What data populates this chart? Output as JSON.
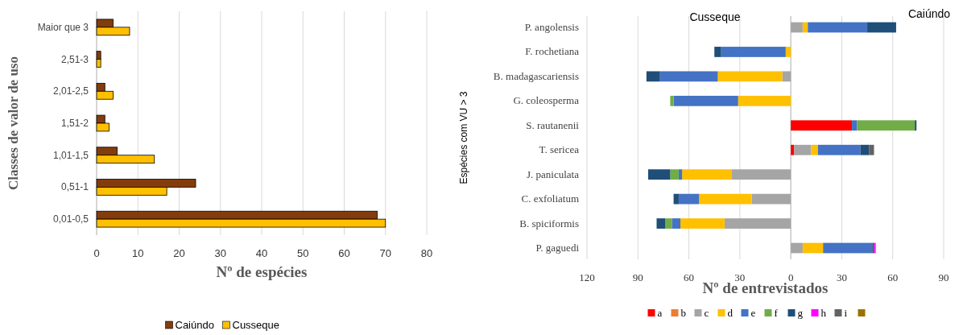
{
  "chart_data": [
    {
      "type": "bar",
      "orientation": "horizontal",
      "xlabel": "Nº de espécies",
      "ylabel": "Classes de valor de uso",
      "categories": [
        "Maior que 3",
        "2,51-3",
        "2,01-2,5",
        "1,51-2",
        "1,01-1,5",
        "0,51-1",
        "0,01-0,5"
      ],
      "series": [
        {
          "name": "Caiúndo",
          "color": "#843c0c",
          "values": [
            4,
            1,
            2,
            2,
            5,
            24,
            68
          ]
        },
        {
          "name": "Cusseque",
          "color": "#ffc000",
          "values": [
            8,
            1,
            4,
            3,
            14,
            17,
            70
          ]
        }
      ],
      "xlim": [
        0,
        80
      ],
      "xticks": [
        0,
        10,
        20,
        30,
        40,
        50,
        60,
        70,
        80
      ],
      "grid": "x",
      "legend": "bottom"
    },
    {
      "type": "bar",
      "orientation": "horizontal",
      "stacked": true,
      "xlabel": "Nº de entrevistados",
      "ylabel": "Espécies com VU > 3",
      "annotations": [
        "Cusseque",
        "Caiúndo"
      ],
      "categories": [
        "P. angolensis",
        "F. rochetiana",
        "B. madagascariensis",
        "G. coleosperma",
        "S. rautanenii",
        "T. sericea",
        "J. paniculata",
        "C. exfoliatum",
        "B. spiciformis",
        "P. gaguedi"
      ],
      "series": [
        {
          "name": "a",
          "color": "#ff0000",
          "values": [
            null,
            null,
            null,
            null,
            36,
            2,
            null,
            null,
            null,
            null
          ]
        },
        {
          "name": "b",
          "color": "#ed7d31",
          "values": [
            null,
            null,
            null,
            null,
            null,
            null,
            null,
            null,
            null,
            null
          ]
        },
        {
          "name": "c",
          "color": "#a5a5a5",
          "values": [
            7,
            null,
            -5,
            null,
            null,
            10,
            -35,
            -23,
            -39,
            7
          ]
        },
        {
          "name": "d",
          "color": "#ffc000",
          "values": [
            3,
            -3,
            -38,
            -31,
            null,
            4,
            -29,
            -31,
            -26,
            12
          ]
        },
        {
          "name": "e",
          "color": "#4472c4",
          "values": [
            35,
            -38,
            -34,
            -38,
            3,
            25,
            -2,
            -12,
            -5,
            29
          ]
        },
        {
          "name": "f",
          "color": "#70ad47",
          "values": [
            null,
            null,
            null,
            -2,
            34,
            null,
            -5,
            null,
            -4,
            null
          ]
        },
        {
          "name": "g",
          "color": "#1f4e79",
          "values": [
            17,
            -4,
            -8,
            null,
            1,
            5,
            -13,
            -3,
            -5,
            1
          ]
        },
        {
          "name": "h",
          "color": "#ff00ff",
          "values": [
            null,
            null,
            null,
            null,
            null,
            null,
            null,
            null,
            null,
            1
          ]
        },
        {
          "name": "i",
          "color": "#636363",
          "values": [
            null,
            null,
            null,
            null,
            null,
            3,
            null,
            null,
            null,
            null
          ]
        },
        {
          "color": "#997300",
          "values": [
            null,
            null,
            null,
            null,
            null,
            null,
            null,
            null,
            null,
            null
          ]
        }
      ],
      "xlim": [
        -120,
        90
      ],
      "xticks": [
        {
          "value": -120,
          "label": "120"
        },
        {
          "value": -90,
          "label": "90"
        },
        {
          "value": -60,
          "label": "60"
        },
        {
          "value": -30,
          "label": "30"
        },
        0,
        30,
        60,
        90
      ],
      "grid": "x",
      "legend": "bottom"
    }
  ]
}
